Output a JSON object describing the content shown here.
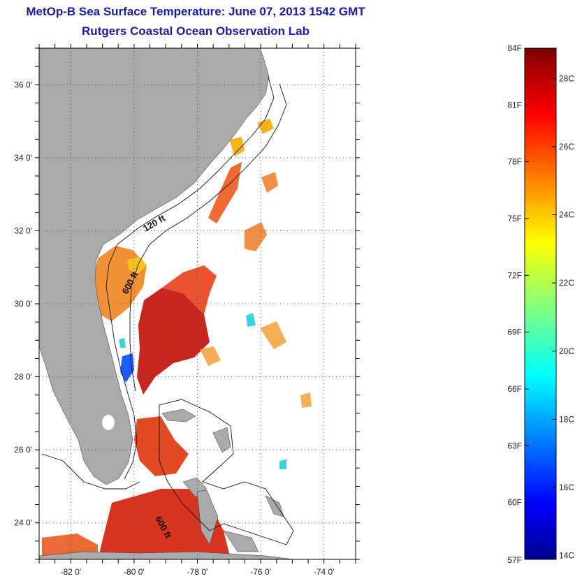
{
  "header": {
    "title": "MetOp-B Sea Surface Temperature:  June 07, 2013 1542 GMT",
    "subtitle": "Rutgers Coastal Ocean Observation Lab"
  },
  "map": {
    "lon_range": [
      -83,
      -73
    ],
    "lat_range": [
      23,
      37
    ],
    "lon_ticks": [
      {
        "value": -82,
        "label": "-82 0'"
      },
      {
        "value": -80,
        "label": "-80 0'"
      },
      {
        "value": -78,
        "label": "-78 0'"
      },
      {
        "value": -76,
        "label": "-76 0'"
      },
      {
        "value": -74,
        "label": "-74 0'"
      }
    ],
    "lat_ticks": [
      {
        "value": 24,
        "label": "24 0'"
      },
      {
        "value": 26,
        "label": "26 0'"
      },
      {
        "value": 28,
        "label": "28 0'"
      },
      {
        "value": 30,
        "label": "30 0'"
      },
      {
        "value": 32,
        "label": "32 0'"
      },
      {
        "value": 34,
        "label": "34 0'"
      },
      {
        "value": 36,
        "label": "36 0'"
      }
    ],
    "contour_labels": [
      "120 ft",
      "600 ft",
      "600 ft"
    ],
    "land_color": "#aaaaaa",
    "grid": "dotted"
  },
  "colorbar": {
    "min_f": 57,
    "max_f": 84,
    "fahrenheit_ticks": [
      "84F",
      "81F",
      "78F",
      "75F",
      "72F",
      "69F",
      "66F",
      "63F",
      "60F",
      "57F"
    ],
    "celsius_ticks": [
      "28C",
      "26C",
      "24C",
      "22C",
      "20C",
      "18C",
      "16C",
      "14C"
    ],
    "colormap": "jet"
  }
}
